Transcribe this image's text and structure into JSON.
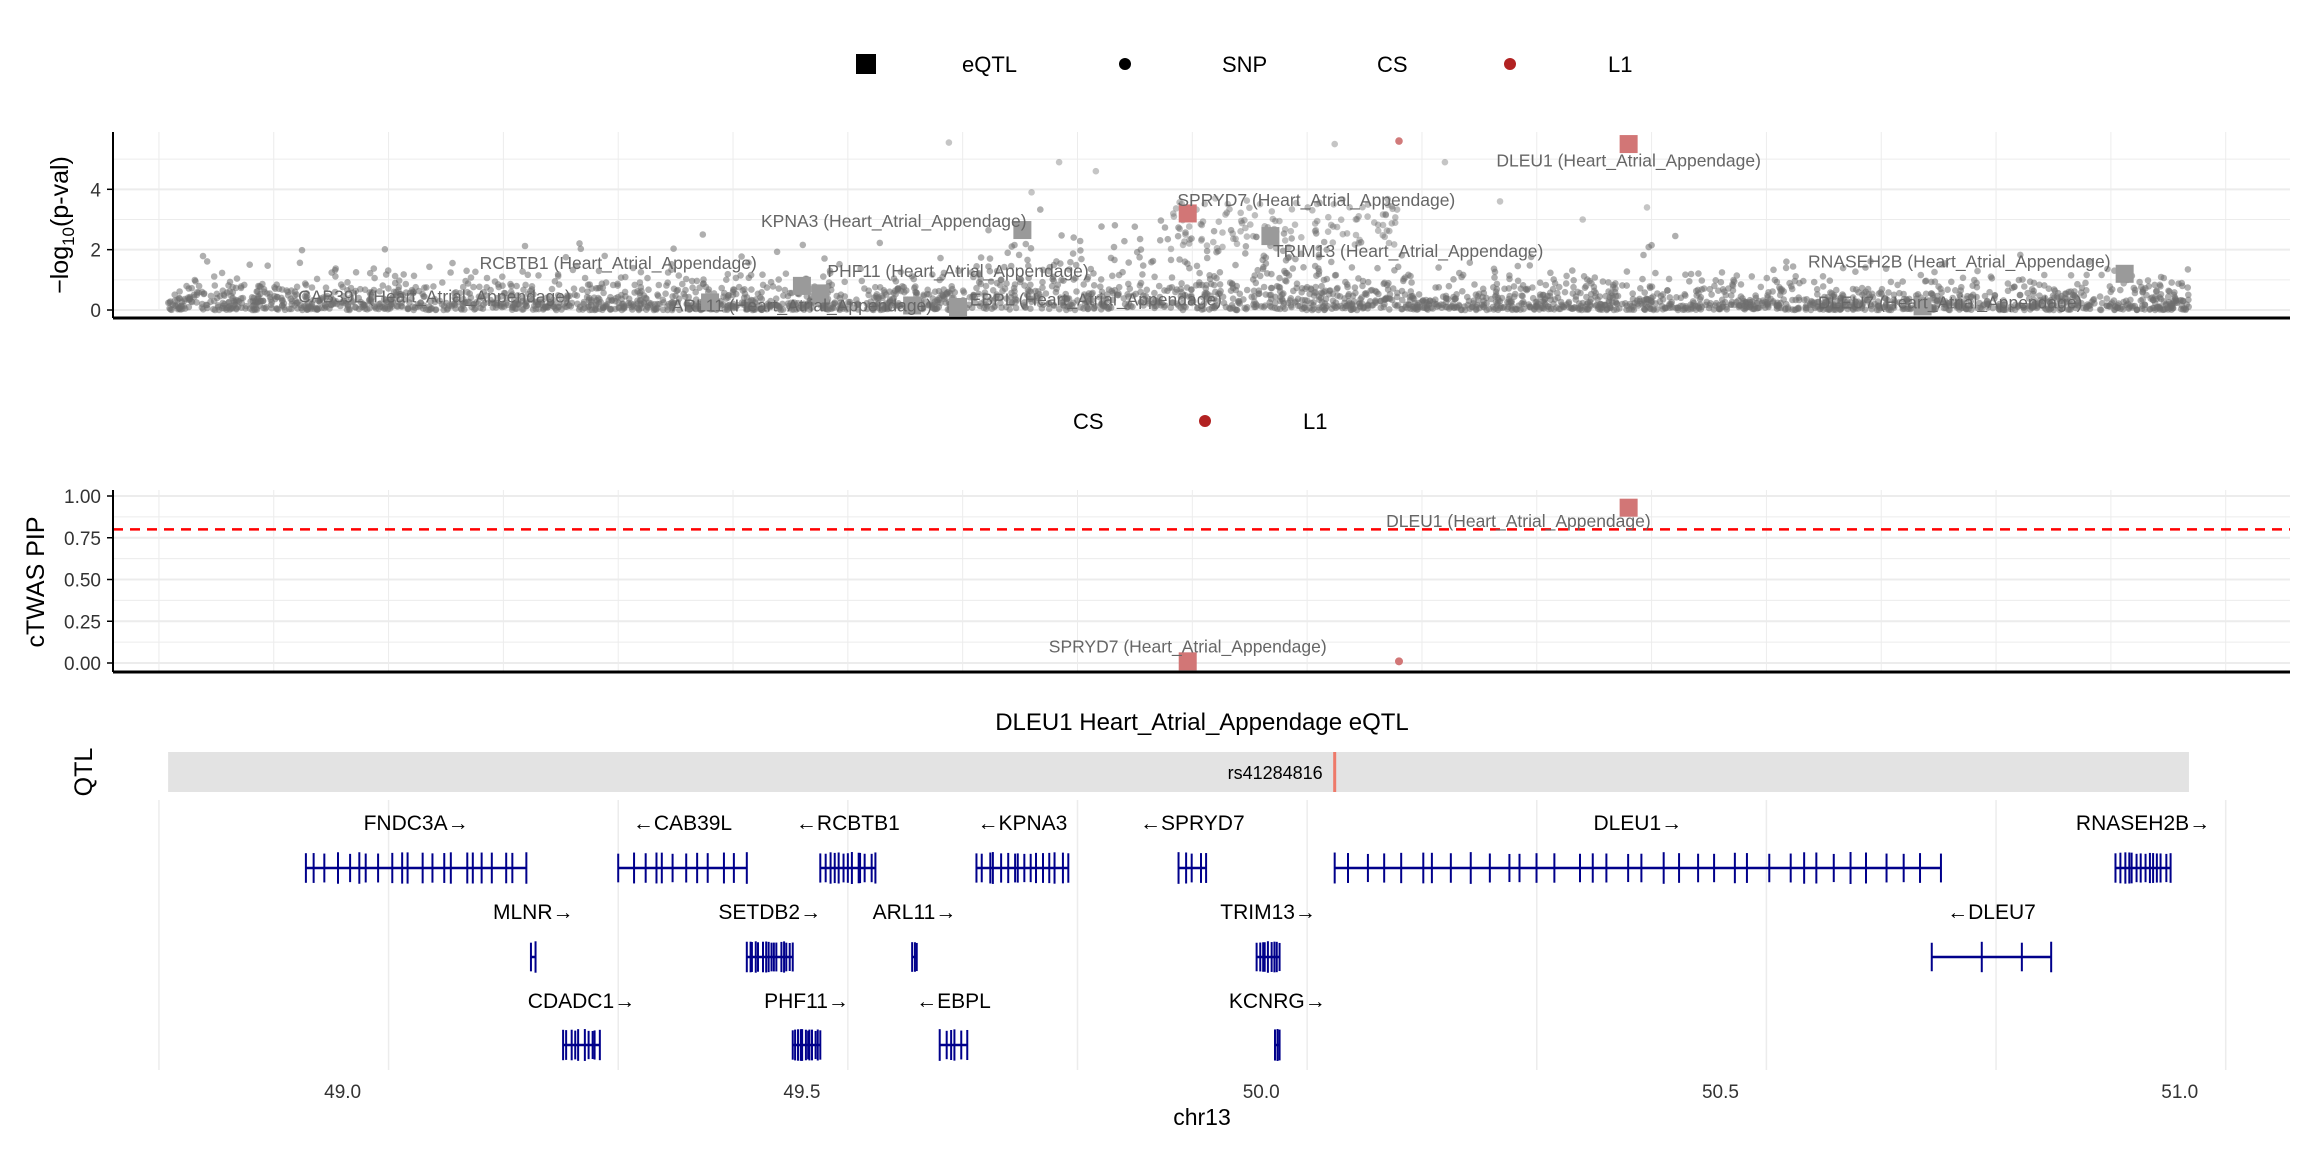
{
  "colors": {
    "snp": "#6e6e6e",
    "cs_l1": "#b22222",
    "eqtl_grey": "#9a9a9a",
    "eqtl_red": "#d27676",
    "gene": "#00008b",
    "threshold": "#ff0000",
    "qtl_bar": "#e3e3e3",
    "qtl_snp": "#ee7a6a",
    "grid": "#ececec",
    "axis": "#000000",
    "label": "#666666"
  },
  "legend_top": {
    "eqtl": "eQTL",
    "snp": "SNP",
    "cs": "CS",
    "l1": "L1"
  },
  "legend_mid": {
    "cs": "CS",
    "l1": "L1"
  },
  "qtl_track": {
    "label": "QTL",
    "title": "DLEU1 Heart_Atrial_Appendage eQTL",
    "snp_id": "rs41284816",
    "range": [
      48.81,
      51.01
    ],
    "snp_pos": 50.08
  },
  "xaxis": {
    "label": "chr13",
    "ticks": [
      "49.0",
      "49.5",
      "50.0",
      "50.5",
      "51.0"
    ],
    "range": [
      48.75,
      51.12
    ]
  },
  "chart_data": [
    {
      "type": "scatter",
      "title": "",
      "xlabel": "",
      "ylabel": "−log10(p-val)",
      "xlim": [
        48.75,
        51.12
      ],
      "ylim": [
        0,
        5.9
      ],
      "yticks": [
        "0",
        "2",
        "4"
      ],
      "snp_regions": [
        [
          48.81,
          49.68,
          0.55
        ],
        [
          49.68,
          50.08,
          1.05
        ],
        [
          50.08,
          50.5,
          0.55
        ],
        [
          50.5,
          51.01,
          0.5
        ]
      ],
      "snps_highlight": [
        {
          "x": 49.66,
          "y": 5.55
        },
        {
          "x": 49.78,
          "y": 4.9
        },
        {
          "x": 49.82,
          "y": 4.6
        },
        {
          "x": 50.08,
          "y": 5.5
        },
        {
          "x": 50.2,
          "y": 4.9
        },
        {
          "x": 49.75,
          "y": 3.9
        },
        {
          "x": 50.42,
          "y": 3.4
        },
        {
          "x": 50.35,
          "y": 3.0
        },
        {
          "x": 50.26,
          "y": 3.6
        },
        {
          "x": 49.95,
          "y": 3.7
        }
      ],
      "cs_l1": [
        {
          "x": 50.15,
          "y": 5.6
        }
      ],
      "eqtl": [
        {
          "gene": "DLEU1 (Heart_Atrial_Appendage)",
          "x": 50.4,
          "y": 5.5,
          "cs": true
        },
        {
          "gene": "SPRYD7 (Heart_Atrial_Appendage)",
          "x": 49.92,
          "y": 3.2,
          "cs": true
        },
        {
          "gene": "KPNA3 (Heart_Atrial_Appendage)",
          "x": 49.74,
          "y": 2.65,
          "cs": false
        },
        {
          "gene": "TRIM13 (Heart_Atrial_Appendage)",
          "x": 50.01,
          "y": 2.45,
          "cs": false
        },
        {
          "gene": "RNASEH2B (Heart_Atrial_Appendage)",
          "x": 50.94,
          "y": 1.2,
          "cs": false
        },
        {
          "gene": "RCBTB1 (Heart_Atrial_Appendage)",
          "x": 49.5,
          "y": 0.8,
          "cs": false
        },
        {
          "gene": "PHF11 (Heart_Atrial_Appendage)",
          "x": 49.52,
          "y": 0.55,
          "cs": false
        },
        {
          "gene": "CAB39L (Heart_Atrial_Appendage)",
          "x": 49.4,
          "y": 0.25,
          "cs": false
        },
        {
          "gene": "ARL11 (Heart_Atrial_Appendage)",
          "x": 49.62,
          "y": 0.15,
          "cs": false
        },
        {
          "gene": "EBPL (Heart_Atrial_Appendage)",
          "x": 49.67,
          "y": 0.1,
          "cs": false
        },
        {
          "gene": "DLEU7 (Heart_Atrial_Appendage)",
          "x": 50.72,
          "y": 0.12,
          "cs": false
        }
      ],
      "labels": [
        {
          "text": "DLEU1 (Heart_Atrial_Appendage)",
          "x": 50.4,
          "y": 4.95,
          "anchor": "middle"
        },
        {
          "text": "SPRYD7 (Heart_Atrial_Appendage)",
          "x": 50.06,
          "y": 3.65,
          "anchor": "middle"
        },
        {
          "text": "KPNA3 (Heart_Atrial_Appendage)",
          "x": 49.6,
          "y": 2.95,
          "anchor": "middle"
        },
        {
          "text": "TRIM13 (Heart_Atrial_Appendage)",
          "x": 50.16,
          "y": 1.95,
          "anchor": "middle"
        },
        {
          "text": "RNASEH2B (Heart_Atrial_Appendage)",
          "x": 50.76,
          "y": 1.6,
          "anchor": "middle"
        },
        {
          "text": "RCBTB1 (Heart_Atrial_Appendage)",
          "x": 49.3,
          "y": 1.55,
          "anchor": "middle"
        },
        {
          "text": "PHF11 (Heart_Atrial_Appendage)",
          "x": 49.67,
          "y": 1.3,
          "anchor": "middle"
        },
        {
          "text": "CAB39L (Heart_Atrial_Appendage)",
          "x": 49.1,
          "y": 0.45,
          "anchor": "middle"
        },
        {
          "text": "ARL11 (Heart_Atrial_Appendage)",
          "x": 49.5,
          "y": 0.15,
          "anchor": "middle"
        },
        {
          "text": "EBPL (Heart_Atrial_Appendage)",
          "x": 49.82,
          "y": 0.35,
          "anchor": "middle"
        },
        {
          "text": "DLEU7 (Heart_Atrial_Appendage)",
          "x": 50.75,
          "y": 0.25,
          "anchor": "middle"
        }
      ]
    },
    {
      "type": "scatter",
      "title": "",
      "xlabel": "",
      "ylabel": "cTWAS PIP",
      "xlim": [
        48.75,
        51.12
      ],
      "ylim": [
        0,
        1.0
      ],
      "yticks": [
        "0.00",
        "0.25",
        "0.50",
        "0.75",
        "1.00"
      ],
      "threshold": 0.8,
      "points": [
        {
          "gene": "DLEU1 (Heart_Atrial_Appendage)",
          "x": 50.4,
          "y": 0.93,
          "kind": "eqtl",
          "cs": true
        },
        {
          "gene": "SPRYD7 (Heart_Atrial_Appendage)",
          "x": 49.92,
          "y": 0.01,
          "kind": "eqtl",
          "cs": true
        },
        {
          "gene": "",
          "x": 50.15,
          "y": 0.01,
          "kind": "snp",
          "cs": true
        }
      ],
      "labels": [
        {
          "text": "DLEU1 (Heart_Atrial_Appendage)",
          "x": 50.28,
          "y": 0.85,
          "anchor": "middle"
        },
        {
          "text": "SPRYD7 (Heart_Atrial_Appendage)",
          "x": 49.92,
          "y": 0.1,
          "anchor": "middle"
        }
      ]
    },
    {
      "type": "gene_track",
      "genes": [
        {
          "name": "FNDC3A",
          "start": 48.96,
          "end": 49.2,
          "strand": "+",
          "row": 0,
          "exons": 22
        },
        {
          "name": "CAB39L",
          "start": 49.3,
          "end": 49.44,
          "strand": "-",
          "row": 0,
          "exons": 12
        },
        {
          "name": "RCBTB1",
          "start": 49.52,
          "end": 49.58,
          "strand": "-",
          "row": 0,
          "exons": 13
        },
        {
          "name": "KPNA3",
          "start": 49.69,
          "end": 49.79,
          "strand": "-",
          "row": 0,
          "exons": 16
        },
        {
          "name": "SPRYD7",
          "start": 49.91,
          "end": 49.94,
          "strand": "-",
          "row": 0,
          "exons": 5
        },
        {
          "name": "DLEU1",
          "start": 50.08,
          "end": 50.74,
          "strand": "+",
          "row": 0,
          "exons": 36
        },
        {
          "name": "RNASEH2B",
          "start": 50.93,
          "end": 50.99,
          "strand": "+",
          "row": 0,
          "exons": 14
        },
        {
          "name": "MLNR",
          "start": 49.205,
          "end": 49.21,
          "strand": "+",
          "row": 1,
          "exons": 2
        },
        {
          "name": "SETDB2",
          "start": 49.44,
          "end": 49.49,
          "strand": "+",
          "row": 1,
          "exons": 16
        },
        {
          "name": "ARL11",
          "start": 49.62,
          "end": 49.625,
          "strand": "+",
          "row": 1,
          "exons": 3
        },
        {
          "name": "TRIM13",
          "start": 49.995,
          "end": 50.02,
          "strand": "+",
          "row": 1,
          "exons": 9
        },
        {
          "name": "DLEU7",
          "start": 50.73,
          "end": 50.86,
          "strand": "-",
          "row": 1,
          "exons": 4
        },
        {
          "name": "CDADC1",
          "start": 49.24,
          "end": 49.28,
          "strand": "+",
          "row": 2,
          "exons": 10
        },
        {
          "name": "PHF11",
          "start": 49.49,
          "end": 49.52,
          "strand": "+",
          "row": 2,
          "exons": 12
        },
        {
          "name": "EBPL",
          "start": 49.65,
          "end": 49.68,
          "strand": "-",
          "row": 2,
          "exons": 6
        },
        {
          "name": "KCNRG",
          "start": 50.015,
          "end": 50.02,
          "strand": "+",
          "row": 2,
          "exons": 3
        }
      ]
    }
  ]
}
